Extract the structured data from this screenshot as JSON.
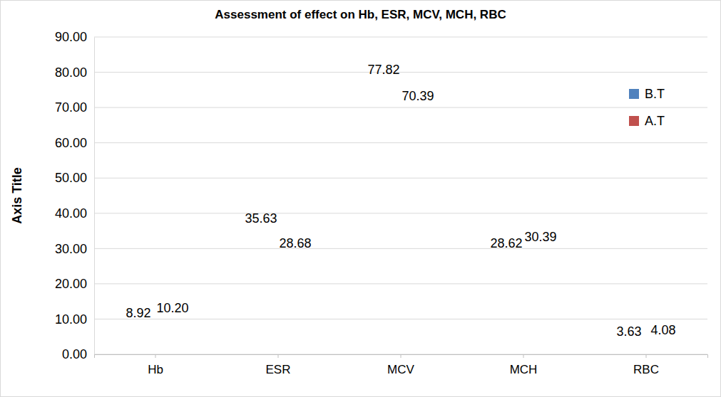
{
  "chart_data": {
    "type": "bar",
    "title": "Assessment of effect on Hb, ESR, MCV, MCH, RBC",
    "y_label": "Axis Title",
    "categories": [
      "Hb",
      "ESR",
      "MCV",
      "MCH",
      "RBC"
    ],
    "series": [
      {
        "name": "B.T",
        "color": "#4f81bd",
        "values": [
          8.92,
          35.63,
          77.82,
          28.62,
          3.63
        ],
        "value_labels": [
          "8.92",
          "35.63",
          "77.82",
          "28.62",
          "3.63"
        ]
      },
      {
        "name": "A.T",
        "color": "#c0504d",
        "values": [
          10.2,
          28.68,
          70.39,
          30.39,
          4.08
        ],
        "value_labels": [
          "10.20",
          "28.68",
          "70.39",
          "30.39",
          "4.08"
        ]
      }
    ],
    "ylim": [
      0,
      90
    ],
    "yticks": [
      {
        "value": 0,
        "label": "0.00"
      },
      {
        "value": 10,
        "label": "10.00"
      },
      {
        "value": 20,
        "label": "20.00"
      },
      {
        "value": 30,
        "label": "30.00"
      },
      {
        "value": 40,
        "label": "40.00"
      },
      {
        "value": 50,
        "label": "50.00"
      },
      {
        "value": 60,
        "label": "60.00"
      },
      {
        "value": 70,
        "label": "70.00"
      },
      {
        "value": 80,
        "label": "80.00"
      },
      {
        "value": 90,
        "label": "90.00"
      }
    ],
    "grid": true,
    "legend": "top-right",
    "data_labels": true
  }
}
